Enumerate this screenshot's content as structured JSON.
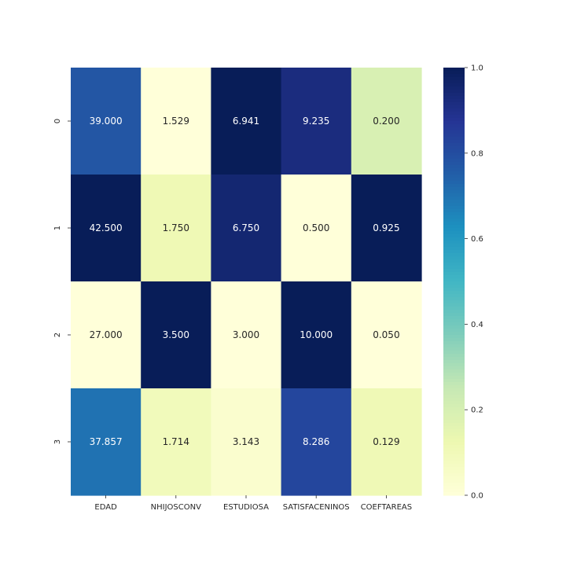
{
  "chart_data": {
    "type": "heatmap",
    "columns": [
      "EDAD",
      "NHIJOSCONV",
      "ESTUDIOSA",
      "SATISFACENINOS",
      "COEFTAREAS"
    ],
    "rows": [
      "0",
      "1",
      "2",
      "3"
    ],
    "values": [
      [
        39.0,
        1.529,
        6.941,
        9.235,
        0.2
      ],
      [
        42.5,
        1.75,
        6.75,
        0.5,
        0.925
      ],
      [
        27.0,
        3.5,
        3.0,
        10.0,
        0.05
      ],
      [
        37.857,
        1.714,
        3.143,
        8.286,
        0.129
      ]
    ],
    "labels": [
      [
        "39.000",
        "1.529",
        "6.941",
        "9.235",
        "0.200"
      ],
      [
        "42.500",
        "1.750",
        "6.750",
        "0.500",
        "0.925"
      ],
      [
        "27.000",
        "3.500",
        "3.000",
        "10.000",
        "0.050"
      ],
      [
        "37.857",
        "1.714",
        "3.143",
        "8.286",
        "0.129"
      ]
    ],
    "color_fraction": [
      [
        0.775,
        0.0,
        1.0,
        0.92,
        0.193
      ],
      [
        1.0,
        0.113,
        0.948,
        0.0,
        1.0
      ],
      [
        0.0,
        1.0,
        0.0,
        1.0,
        0.0
      ],
      [
        0.7,
        0.094,
        0.034,
        0.82,
        0.108
      ]
    ],
    "colormap": "YlGnBu",
    "colorbar": {
      "min": 0.0,
      "max": 1.0,
      "ticks": [
        "0.0",
        "0.2",
        "0.4",
        "0.6",
        "0.8",
        "1.0"
      ]
    },
    "colors": {
      "text_light": "#ffffff",
      "text_dark": "#262626",
      "tick": "#262626"
    }
  }
}
